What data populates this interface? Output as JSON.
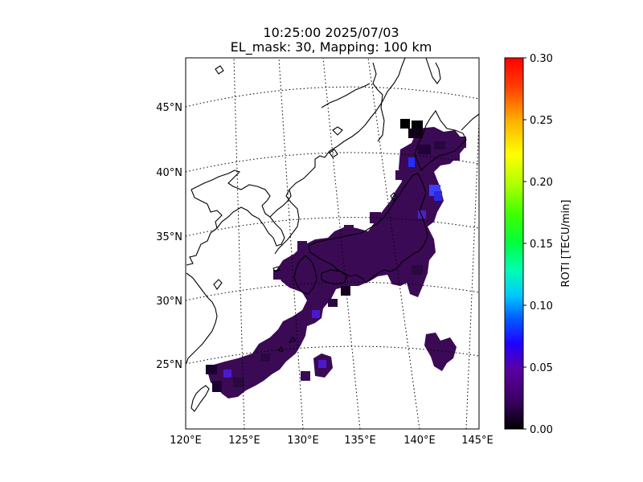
{
  "chart_data": {
    "type": "heatmap",
    "title_line1": "10:25:00 2025/07/03",
    "title_line2": "EL_mask: 30, Mapping: 100 km",
    "colorbar": {
      "label": "ROTI [TECU/min]",
      "range": [
        0.0,
        0.3
      ],
      "ticks": [
        "0.00",
        "0.05",
        "0.10",
        "0.15",
        "0.20",
        "0.25",
        "0.30"
      ]
    },
    "lat_ticks": [
      {
        "lat": 45,
        "label": "45°N"
      },
      {
        "lat": 40,
        "label": "40°N"
      },
      {
        "lat": 35,
        "label": "35°N"
      },
      {
        "lat": 30,
        "label": "30°N"
      },
      {
        "lat": 25,
        "label": "25°N"
      }
    ],
    "lon_ticks": [
      {
        "lon": 120,
        "label": "120°E"
      },
      {
        "lon": 125,
        "label": "125°E"
      },
      {
        "lon": 130,
        "label": "130°E"
      },
      {
        "lon": 135,
        "label": "135°E"
      },
      {
        "lon": 140,
        "label": "140°E"
      },
      {
        "lon": 145,
        "label": "145°E"
      }
    ],
    "extent": {
      "lon": [
        120,
        145
      ],
      "lat": [
        20,
        49
      ]
    },
    "grid": "dotted",
    "typical_roti": 0.03,
    "roti_cells": [
      [
        123.0,
        24.3,
        0.02
      ],
      [
        124.0,
        24.3,
        0.03
      ],
      [
        125.0,
        24.3,
        0.03
      ],
      [
        126.0,
        24.5,
        0.03
      ],
      [
        127.0,
        25.2,
        0.03
      ],
      [
        128.0,
        25.8,
        0.03
      ],
      [
        129.0,
        26.5,
        0.03
      ],
      [
        130.0,
        27.5,
        0.03
      ],
      [
        130.5,
        28.5,
        0.03
      ],
      [
        130.0,
        30.0,
        0.03
      ],
      [
        130.5,
        31.5,
        0.03
      ],
      [
        130.0,
        33.0,
        0.04
      ],
      [
        131.0,
        33.5,
        0.03
      ],
      [
        132.0,
        34.0,
        0.03
      ],
      [
        133.0,
        34.5,
        0.03
      ],
      [
        134.5,
        34.8,
        0.03
      ],
      [
        136.0,
        35.0,
        0.03
      ],
      [
        137.5,
        35.5,
        0.03
      ],
      [
        138.5,
        36.5,
        0.03
      ],
      [
        139.5,
        37.5,
        0.03
      ],
      [
        140.5,
        38.5,
        0.04
      ],
      [
        141.5,
        39.0,
        0.06
      ],
      [
        140.0,
        40.5,
        0.03
      ],
      [
        140.5,
        41.5,
        0.02
      ],
      [
        141.5,
        42.5,
        0.03
      ],
      [
        142.5,
        43.0,
        0.03
      ],
      [
        141.0,
        43.5,
        0.01
      ],
      [
        139.5,
        40.0,
        0.07
      ],
      [
        140.5,
        26.0,
        0.03
      ],
      [
        130.5,
        24.5,
        0.03
      ],
      [
        131.0,
        25.0,
        0.05
      ]
    ]
  }
}
